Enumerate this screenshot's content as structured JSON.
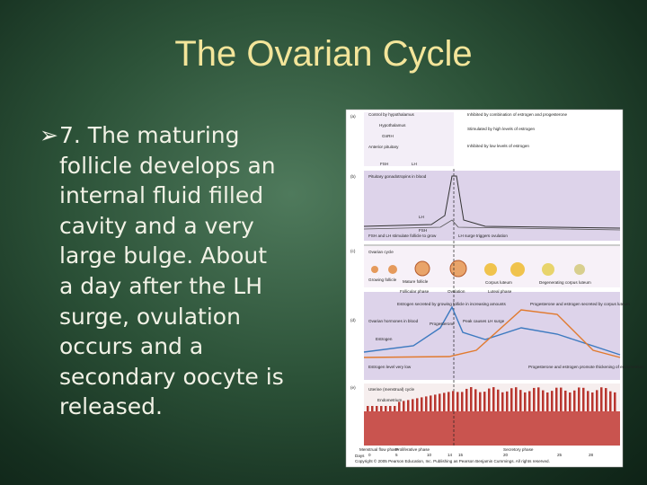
{
  "slide": {
    "title": "The Ovarian Cycle",
    "bullet_lines": [
      "7.  The maturing",
      "follicle develops an",
      "internal fluid filled",
      "cavity and a very",
      "large bulge.  About",
      "a day after the LH",
      "surge, ovulation",
      "occurs and a",
      "secondary oocyte is",
      "released."
    ]
  },
  "figure": {
    "labels": [
      "(a)",
      "(b)",
      "(c)",
      "(d)",
      "(e)",
      "Control by hypothalamus",
      "Hypothalamus",
      "GnRH",
      "Anterior pituitary",
      "FSH",
      "LH",
      "Inhibited by combination of estrogen and progesterone",
      "Stimulated by high levels of estrogen",
      "Inhibited by low levels of estrogen",
      "Pituitary gonadotropins in blood",
      "LH",
      "FSH",
      "FSH and LH stimulate follicle to grow",
      "LH surge triggers ovulation",
      "Ovarian cycle",
      "Growing follicle",
      "Mature follicle",
      "Corpus luteum",
      "Degenerating corpus luteum",
      "Follicular phase",
      "Ovulation",
      "Luteal phase",
      "Ovarian hormones in blood",
      "Estrogen secreted by growing follicle in increasing amounts",
      "Peak causes LH surge",
      "Progesterone and estrogen secreted by corpus luteum",
      "Estrogen",
      "Progesterone",
      "Estrogen level very low",
      "Progesterone and estrogen promote thickening of endometrium",
      "Uterine (menstrual) cycle",
      "Endometrium",
      "Menstrual flow phase",
      "Proliferative phase",
      "Secretory phase",
      "Days"
    ],
    "days": [
      "0",
      "5",
      "10",
      "14",
      "15",
      "20",
      "25",
      "28"
    ],
    "copyright": "Copyright © 2005 Pearson Education, Inc. Publishing as Pearson Benjamin Cummings. All rights reserved."
  }
}
